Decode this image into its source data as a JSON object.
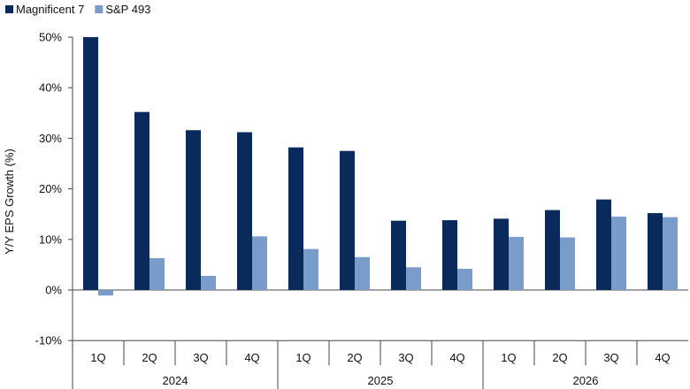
{
  "chart_data": {
    "type": "bar",
    "title": "",
    "ylabel": "Y/Y EPS Growth (%)",
    "xlabel": "",
    "ylim": [
      -10,
      50
    ],
    "yticks": [
      50,
      40,
      30,
      20,
      10,
      0,
      -10
    ],
    "ytick_labels": [
      "50%",
      "40%",
      "30%",
      "20%",
      "10%",
      "0%",
      "-10%"
    ],
    "categories": [
      "1Q",
      "2Q",
      "3Q",
      "4Q",
      "1Q",
      "2Q",
      "3Q",
      "4Q",
      "1Q",
      "2Q",
      "3Q",
      "4Q"
    ],
    "groups": [
      {
        "label": "2024",
        "count": 4
      },
      {
        "label": "2025",
        "count": 4
      },
      {
        "label": "2026",
        "count": 4
      }
    ],
    "legend_position": "top-left",
    "grid": false,
    "series": [
      {
        "name": "Magnificent 7",
        "color": "#0b2a5c",
        "values": [
          50.0,
          35.2,
          31.6,
          31.2,
          28.2,
          27.5,
          13.7,
          13.8,
          14.1,
          15.8,
          17.9,
          15.2
        ]
      },
      {
        "name": "S&P 493",
        "color": "#7a9ccb",
        "values": [
          -1.1,
          6.3,
          2.8,
          10.6,
          8.1,
          6.5,
          4.5,
          4.2,
          10.5,
          10.4,
          14.5,
          14.4
        ]
      }
    ]
  }
}
